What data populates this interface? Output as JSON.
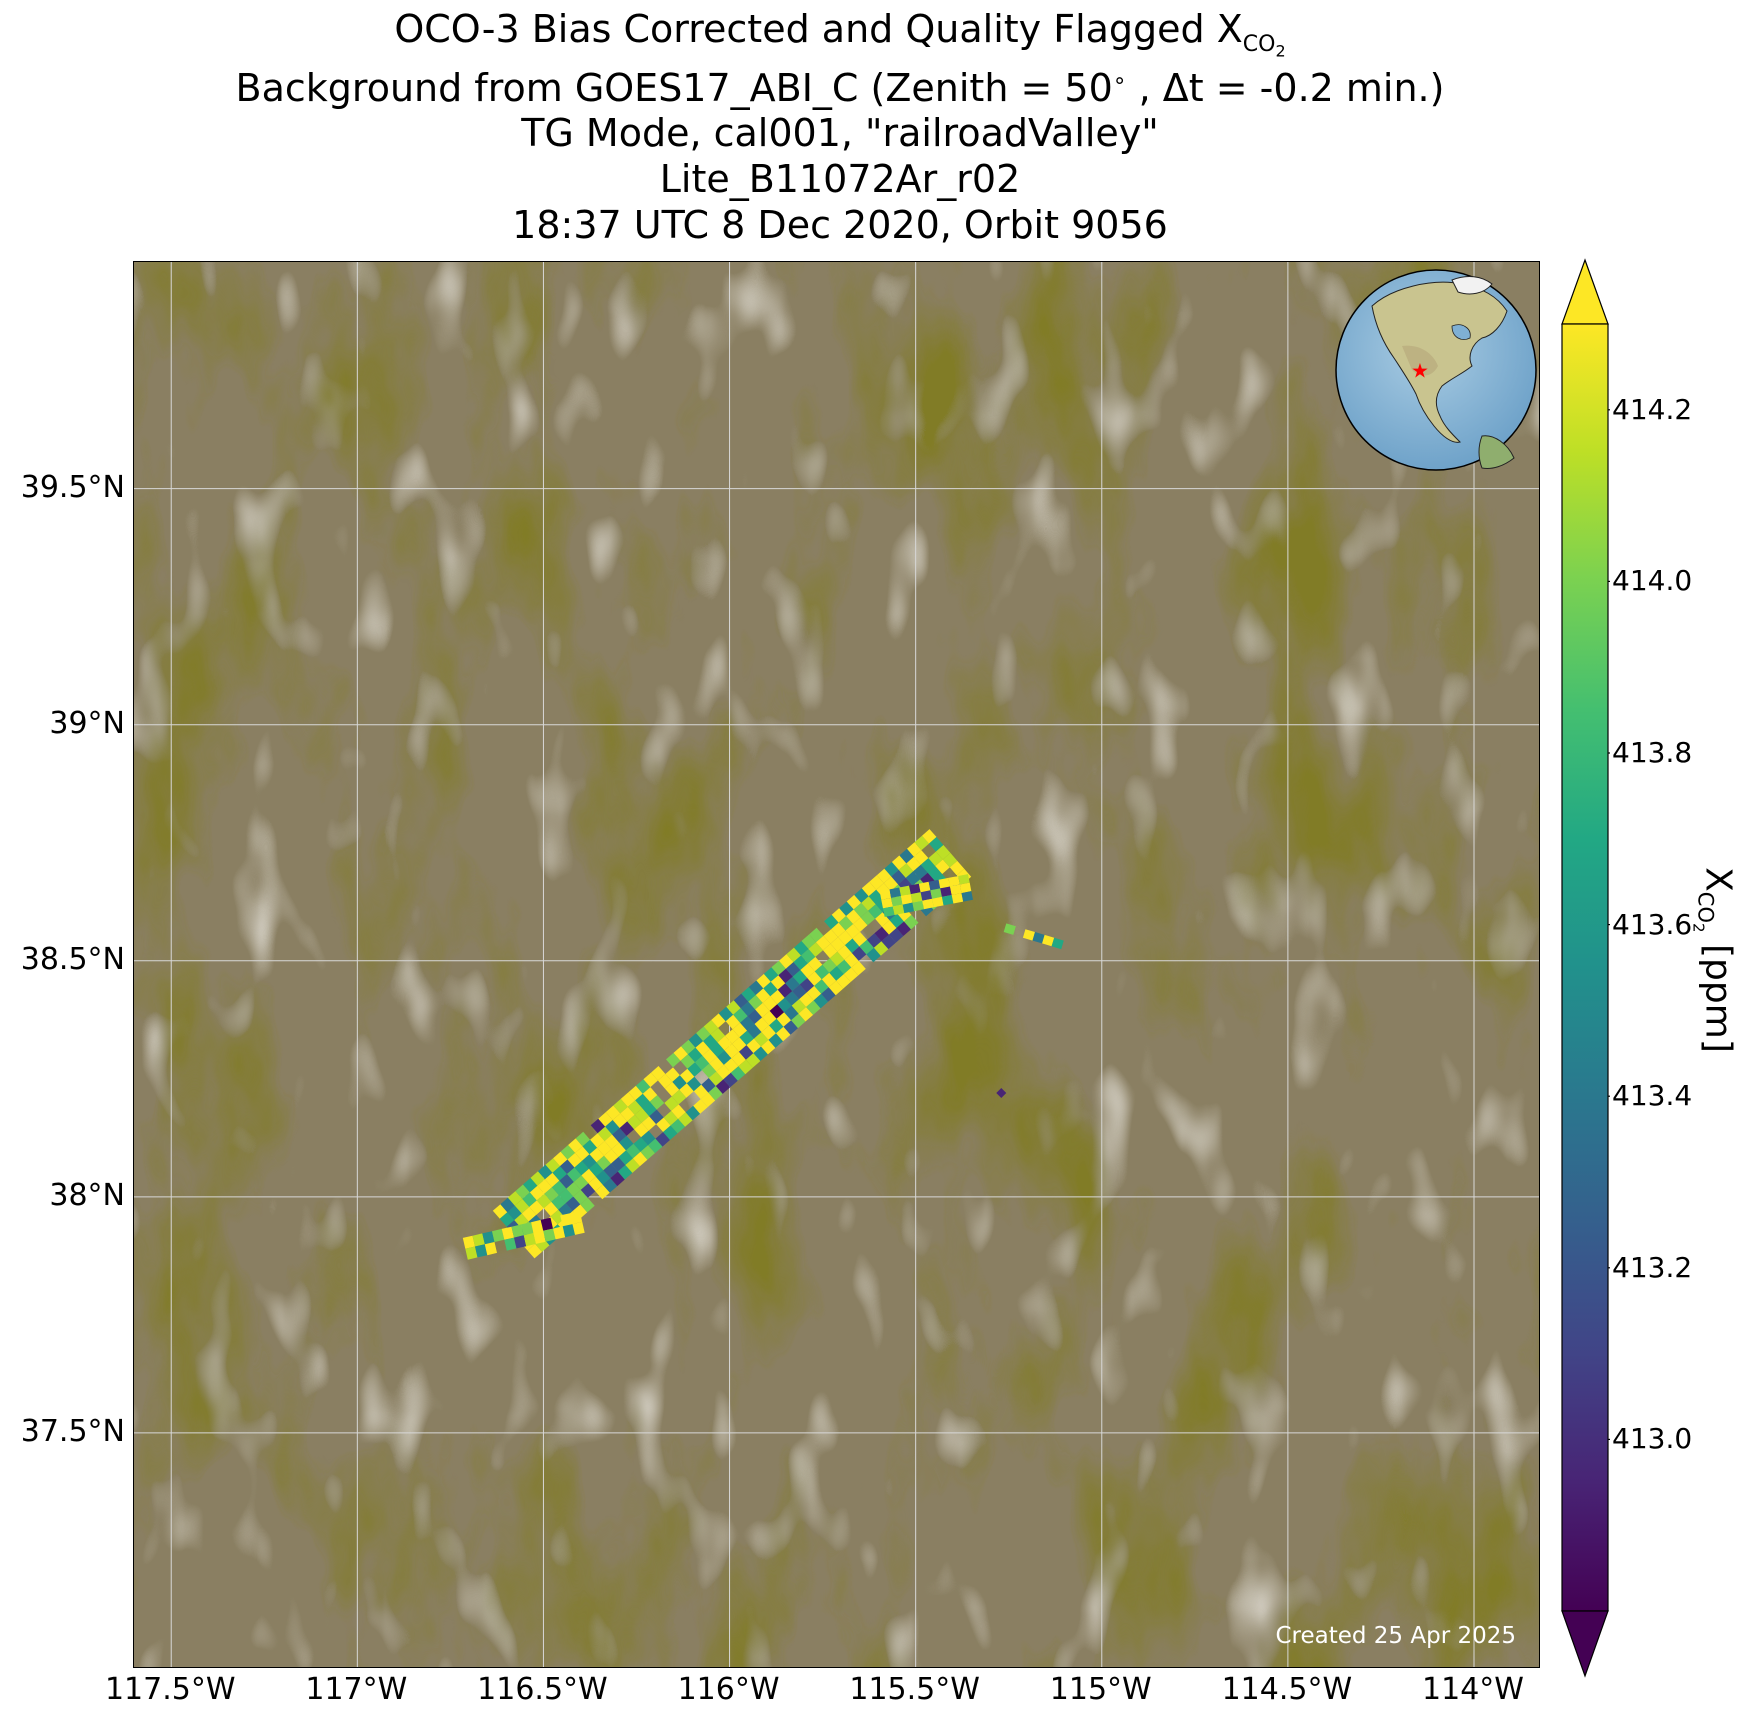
{
  "figure": {
    "title_lines": [
      "OCO-3 Bias Corrected and Quality Flagged X",
      "Background from GOES17_ABI_C (Zenith = 50 , Δt = -0.2 min.)",
      "TG Mode, cal001, \"railroadValley\"",
      "Lite_B11072Ar_r02",
      "18:37 UTC 8 Dec 2020, Orbit 9056"
    ],
    "title_sub": "CO",
    "title_sub2": "2",
    "title_degree": "∘",
    "created_text": "Created 25 Apr 2025"
  },
  "chart_data": {
    "type": "heatmap",
    "xlim": [
      -117.6,
      -113.82
    ],
    "ylim": [
      37.0,
      39.98
    ],
    "x_ticks": [
      {
        "value": -117.5,
        "label": "117.5°W"
      },
      {
        "value": -117.0,
        "label": "117°W"
      },
      {
        "value": -116.5,
        "label": "116.5°W"
      },
      {
        "value": -116.0,
        "label": "116°W"
      },
      {
        "value": -115.5,
        "label": "115.5°W"
      },
      {
        "value": -115.0,
        "label": "115°W"
      },
      {
        "value": -114.5,
        "label": "114.5°W"
      },
      {
        "value": -114.0,
        "label": "114°W"
      }
    ],
    "y_ticks": [
      {
        "value": 39.5,
        "label": "39.5°N"
      },
      {
        "value": 39.0,
        "label": "39°N"
      },
      {
        "value": 38.5,
        "label": "38.5°N"
      },
      {
        "value": 38.0,
        "label": "38°N"
      },
      {
        "value": 37.5,
        "label": "37.5°N"
      }
    ],
    "grid": true,
    "colormap": "viridis",
    "colorbar": {
      "label_main": "X",
      "label_sub": "CO",
      "label_sub2": "2",
      "label_unit": " [ppm]",
      "vmin": 412.8,
      "vmax": 414.3,
      "extend": "both",
      "ticks": [
        {
          "value": 413.0,
          "label": "413.0"
        },
        {
          "value": 413.2,
          "label": "413.2"
        },
        {
          "value": 413.4,
          "label": "413.4"
        },
        {
          "value": 413.6,
          "label": "413.6"
        },
        {
          "value": 413.8,
          "label": "413.8"
        },
        {
          "value": 414.0,
          "label": "414.0"
        },
        {
          "value": 414.2,
          "label": "414.2"
        }
      ]
    },
    "swaths": [
      {
        "start": [
          -116.58,
          37.92
        ],
        "end": [
          -115.39,
          38.74
        ],
        "half_width_deg": 0.085
      },
      {
        "start": [
          -116.71,
          37.89
        ],
        "end": [
          -116.38,
          37.95
        ],
        "half_width_deg": 0.03
      },
      {
        "start": [
          -115.59,
          38.62
        ],
        "end": [
          -115.33,
          38.66
        ],
        "half_width_deg": 0.035
      },
      {
        "start": [
          -115.26,
          38.57
        ],
        "end": [
          -115.09,
          38.53
        ],
        "half_width_deg": 0.012
      }
    ],
    "isolated_sounding": {
      "lon": -115.27,
      "lat": 38.22,
      "value": 412.9
    },
    "inset_globe": {
      "marker_lon": -115.8,
      "marker_lat": 38.5,
      "marker_color": "#ff0000"
    }
  }
}
